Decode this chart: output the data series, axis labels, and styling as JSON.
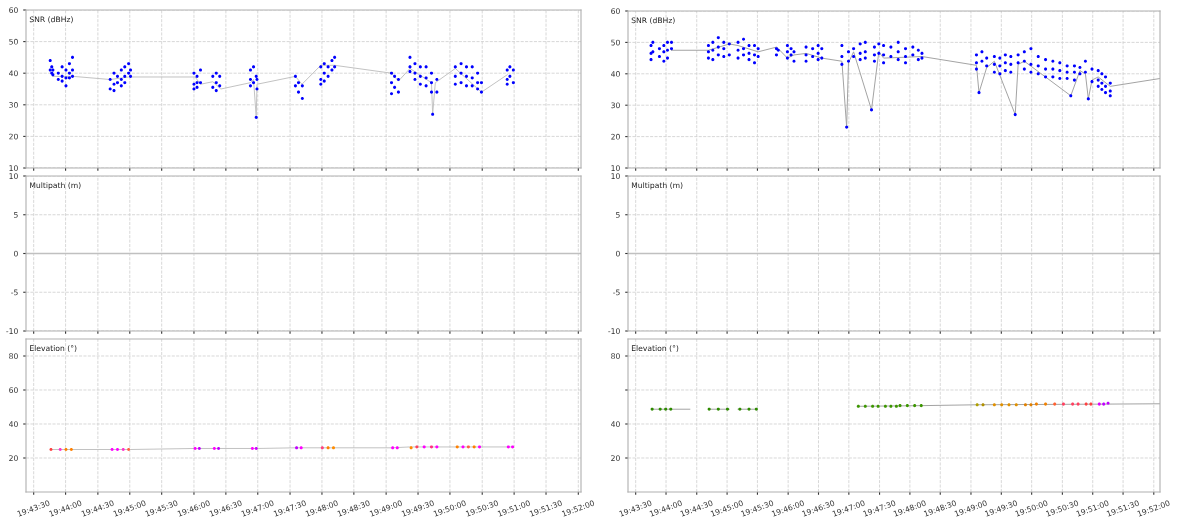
{
  "chart_data": [
    {
      "type": "scatter",
      "ylabel": "SNR (dBHz)",
      "xlim": [
        19.723,
        19.8674
      ],
      "ylim": [
        10,
        60
      ],
      "yticks": [
        10,
        20,
        30,
        40,
        50,
        60
      ],
      "xticks": [
        {
          "value": 19.725,
          "label": null
        },
        {
          "value": 19.7333,
          "label": null
        },
        {
          "value": 19.7417,
          "label": null
        },
        {
          "value": 19.75,
          "label": null
        },
        {
          "value": 19.7583,
          "label": null
        },
        {
          "value": 19.7667,
          "label": null
        },
        {
          "value": 19.775,
          "label": null
        },
        {
          "value": 19.7833,
          "label": null
        },
        {
          "value": 19.7917,
          "label": null
        },
        {
          "value": 19.8,
          "label": null
        },
        {
          "value": 19.8083,
          "label": null
        },
        {
          "value": 19.8167,
          "label": null
        },
        {
          "value": 19.825,
          "label": null
        },
        {
          "value": 19.8333,
          "label": null
        },
        {
          "value": 19.8417,
          "label": null
        },
        {
          "value": 19.85,
          "label": null
        },
        {
          "value": 19.8583,
          "label": null
        },
        {
          "value": 19.8667,
          "label": null
        }
      ],
      "tick_labels": "y",
      "grid": true,
      "series": [
        {
          "type": "line",
          "color": "#c0c0c0",
          "x": [
            19.73,
            19.7353,
            19.7449,
            19.7497,
            19.767,
            19.7684,
            19.7716,
            19.7737,
            19.7814,
            19.7822,
            19.7829,
            19.7831,
            19.7931,
            19.7948,
            19.7997,
            19.8033,
            19.8181,
            19.8199,
            19.8229,
            19.8285,
            19.8288,
            19.8295,
            19.8347,
            19.8415,
            19.8482
          ],
          "values": [
            39,
            39,
            38,
            38.8,
            38.8,
            36.5,
            37.3,
            35,
            37,
            38,
            26,
            36.5,
            39,
            36.5,
            42.5,
            42.5,
            40,
            37.5,
            41.5,
            37,
            27,
            37,
            41.5,
            34,
            39.5
          ]
        },
        {
          "color": "#0000ff",
          "x": [
            19.7293,
            19.7293,
            19.7297,
            19.7297,
            19.73,
            19.73,
            19.7314,
            19.7314,
            19.7324,
            19.7324,
            19.7324,
            19.7334,
            19.7334,
            19.7334,
            19.7343,
            19.7343,
            19.7343,
            19.7351,
            19.7351,
            19.7351,
            19.7449,
            19.7449,
            19.7459,
            19.7459,
            19.7459,
            19.7468,
            19.7468,
            19.7478,
            19.7478,
            19.7478,
            19.7487,
            19.7487,
            19.7487,
            19.7497,
            19.7497,
            19.7502,
            19.7502,
            19.7667,
            19.7667,
            19.7667,
            19.7675,
            19.7675,
            19.7675,
            19.7684,
            19.7684,
            19.7716,
            19.7716,
            19.7725,
            19.7725,
            19.7725,
            19.7734,
            19.7734,
            19.7814,
            19.7814,
            19.7814,
            19.7822,
            19.7822,
            19.7829,
            19.7829,
            19.7831,
            19.7831,
            19.7931,
            19.7931,
            19.7939,
            19.7939,
            19.7949,
            19.7949,
            19.7997,
            19.7997,
            19.7997,
            19.8006,
            19.8006,
            19.8006,
            19.8016,
            19.8016,
            19.8026,
            19.8026,
            19.8033,
            19.8033,
            19.8181,
            19.8181,
            19.8181,
            19.8189,
            19.8189,
            19.8199,
            19.8199,
            19.8229,
            19.8229,
            19.8229,
            19.8242,
            19.8242,
            19.8242,
            19.8256,
            19.8256,
            19.8256,
            19.8271,
            19.8271,
            19.8271,
            19.8285,
            19.8285,
            19.8285,
            19.8288,
            19.8299,
            19.8299,
            19.8347,
            19.8347,
            19.8347,
            19.8362,
            19.8362,
            19.8362,
            19.8376,
            19.8376,
            19.8376,
            19.8391,
            19.8391,
            19.8391,
            19.8405,
            19.8405,
            19.8405,
            19.8415,
            19.8415,
            19.8482,
            19.8482,
            19.8482,
            19.8489,
            19.8489,
            19.8498,
            19.8498
          ],
          "values": [
            44,
            41,
            42,
            40,
            41,
            39.5,
            40,
            38,
            42,
            39,
            37.5,
            41,
            38.5,
            36,
            43,
            40,
            38.5,
            45,
            41,
            39,
            38,
            35,
            40,
            36.5,
            34.5,
            39,
            37,
            41,
            38,
            36,
            42,
            39,
            37,
            43,
            40,
            41,
            39,
            40,
            36.5,
            35,
            39,
            37,
            35.5,
            41,
            37,
            39,
            35.5,
            40,
            37,
            34.5,
            39,
            36,
            41,
            38,
            36,
            42,
            37,
            39,
            26,
            38,
            35,
            39,
            36,
            37,
            34,
            36,
            32,
            42,
            38,
            36.5,
            43,
            40,
            37.5,
            42,
            39,
            44,
            41,
            45,
            42,
            40,
            37,
            33.5,
            39,
            35.5,
            38,
            34,
            45,
            42,
            40.5,
            43,
            40,
            38,
            42,
            39,
            36.5,
            42,
            38.5,
            36,
            40,
            37,
            34,
            27,
            38,
            34,
            42,
            39,
            36.5,
            43,
            40,
            37,
            42,
            39,
            36,
            42,
            38.5,
            36,
            40,
            37,
            35,
            37,
            34,
            41,
            38,
            36.5,
            42,
            39,
            41,
            37
          ]
        }
      ]
    },
    {
      "type": "scatter",
      "ylabel": "Multipath (m)",
      "xlim": [
        19.723,
        19.8674
      ],
      "ylim": [
        -10,
        10
      ],
      "yticks": [
        -10,
        -5,
        0,
        5,
        10
      ],
      "xticks": [
        {
          "value": 19.725,
          "label": null
        },
        {
          "value": 19.7333,
          "label": null
        },
        {
          "value": 19.7417,
          "label": null
        },
        {
          "value": 19.75,
          "label": null
        },
        {
          "value": 19.7583,
          "label": null
        },
        {
          "value": 19.7667,
          "label": null
        },
        {
          "value": 19.775,
          "label": null
        },
        {
          "value": 19.7833,
          "label": null
        },
        {
          "value": 19.7917,
          "label": null
        },
        {
          "value": 19.8,
          "label": null
        },
        {
          "value": 19.8083,
          "label": null
        },
        {
          "value": 19.8167,
          "label": null
        },
        {
          "value": 19.825,
          "label": null
        },
        {
          "value": 19.8333,
          "label": null
        },
        {
          "value": 19.8417,
          "label": null
        },
        {
          "value": 19.85,
          "label": null
        },
        {
          "value": 19.8583,
          "label": null
        },
        {
          "value": 19.8667,
          "label": null
        }
      ],
      "tick_labels": "y",
      "grid": true,
      "ref_lines": [
        {
          "axis": "y",
          "value": 0,
          "color": "#c0c0c0",
          "line_style": "solid"
        }
      ]
    },
    {
      "type": "scatter",
      "ylabel": "Elevation (°)",
      "xlim": [
        19.723,
        19.8674
      ],
      "ylim": [
        0,
        90
      ],
      "yticks": [
        20,
        40,
        60,
        80
      ],
      "xticks": [
        {
          "value": 19.725,
          "label": "19:43:30"
        },
        {
          "value": 19.7333,
          "label": "19:44:00"
        },
        {
          "value": 19.7417,
          "label": "19:44:30"
        },
        {
          "value": 19.75,
          "label": "19:45:00"
        },
        {
          "value": 19.7583,
          "label": "19:45:30"
        },
        {
          "value": 19.7667,
          "label": "19:46:00"
        },
        {
          "value": 19.775,
          "label": "19:46:30"
        },
        {
          "value": 19.7833,
          "label": "19:47:00"
        },
        {
          "value": 19.7917,
          "label": "19:47:30"
        },
        {
          "value": 19.8,
          "label": "19:48:00"
        },
        {
          "value": 19.8083,
          "label": "19:48:30"
        },
        {
          "value": 19.8167,
          "label": "19:49:00"
        },
        {
          "value": 19.825,
          "label": "19:49:30"
        },
        {
          "value": 19.8333,
          "label": "19:50:00"
        },
        {
          "value": 19.8417,
          "label": "19:50:30"
        },
        {
          "value": 19.85,
          "label": "19:51:00"
        },
        {
          "value": 19.8583,
          "label": "19:51:30"
        },
        {
          "value": 19.8667,
          "label": "19:52:00"
        }
      ],
      "grid": true,
      "series": [
        {
          "type": "line",
          "color": "#c0c0c0",
          "x": [
            19.7295,
            19.7502,
            19.7667,
            19.7834,
            19.7931,
            19.8181,
            19.8229,
            19.8498
          ],
          "values": [
            25,
            25,
            25.6,
            25.6,
            26,
            26,
            26.5,
            26.5
          ]
        },
        {
          "x": [
            19.7295,
            19.7319,
            19.7334,
            19.7348,
            19.7454,
            19.7468,
            19.7483,
            19.7497,
            19.767,
            19.7681,
            19.772,
            19.7731,
            19.7819,
            19.7829,
            19.7934,
            19.7946,
            19.8001,
            19.8016,
            19.803,
            19.8184,
            19.8196,
            19.8232,
            19.8247,
            19.8266,
            19.8285,
            19.8299,
            19.8352,
            19.8367,
            19.8381,
            19.8396,
            19.841,
            19.8485,
            19.8496
          ],
          "values": [
            25,
            25,
            25,
            25,
            25,
            25,
            25,
            25,
            25.6,
            25.6,
            25.6,
            25.6,
            25.6,
            25.6,
            26,
            26,
            26,
            26,
            26,
            26,
            26,
            26,
            26.5,
            26.5,
            26.5,
            26.5,
            26.5,
            26.5,
            26.5,
            26.5,
            26.5,
            26.5,
            26.5
          ],
          "colors": [
            "#ff4040",
            "#ff33cc",
            "#ff8000",
            "#ff8000",
            "#ff00ff",
            "#ff00ff",
            "#ff33cc",
            "#ff6040",
            "#ff00ff",
            "#c000ff",
            "#ff00ff",
            "#c000ff",
            "#ff00ff",
            "#cc00ff",
            "#c000ff",
            "#ff00ff",
            "#ff4080",
            "#ff8000",
            "#ff8c00",
            "#ff00ff",
            "#ff00ff",
            "#ff8c00",
            "#ff4060",
            "#ff00ff",
            "#ff3080",
            "#ff00ff",
            "#ff8000",
            "#ff00ff",
            "#ff6040",
            "#ff8000",
            "#ff00ff",
            "#ff00ff",
            "#ff00ff"
          ]
        }
      ]
    },
    {
      "type": "scatter",
      "ylabel": "SNR (dBHz)",
      "xlim": [
        19.7229,
        19.8684
      ],
      "ylim": [
        10,
        60
      ],
      "yticks": [
        10,
        20,
        30,
        40,
        50,
        60
      ],
      "xticks": [
        {
          "value": 19.725,
          "label": null
        },
        {
          "value": 19.7333,
          "label": null
        },
        {
          "value": 19.7417,
          "label": null
        },
        {
          "value": 19.75,
          "label": null
        },
        {
          "value": 19.7583,
          "label": null
        },
        {
          "value": 19.7667,
          "label": null
        },
        {
          "value": 19.775,
          "label": null
        },
        {
          "value": 19.7833,
          "label": null
        },
        {
          "value": 19.7917,
          "label": null
        },
        {
          "value": 19.8,
          "label": null
        },
        {
          "value": 19.8083,
          "label": null
        },
        {
          "value": 19.8167,
          "label": null
        },
        {
          "value": 19.825,
          "label": null
        },
        {
          "value": 19.8333,
          "label": null
        },
        {
          "value": 19.8417,
          "label": null
        },
        {
          "value": 19.85,
          "label": null
        },
        {
          "value": 19.8583,
          "label": null
        },
        {
          "value": 19.8667,
          "label": null
        }
      ],
      "tick_labels": "y",
      "grid": true,
      "series": [
        {
          "type": "line",
          "color": "#a0a0a0",
          "x": [
            19.7348,
            19.7449,
            19.7506,
            19.753,
            19.7585,
            19.7635,
            19.764,
            19.7665,
            19.7683,
            19.7716,
            19.7759,
            19.7814,
            19.7827,
            19.7832,
            19.7846,
            19.7895,
            19.7915,
            19.7928,
            19.8033,
            19.8182,
            19.8189,
            19.821,
            19.8231,
            19.8288,
            19.8296,
            19.8313,
            19.844,
            19.8465,
            19.848,
            19.8488,
            19.8498,
            19.8515,
            19.8548,
            19.8684
          ],
          "values": [
            47.5,
            47.5,
            49.5,
            49,
            47,
            48.5,
            48,
            45,
            46,
            46.5,
            45,
            44,
            23,
            43.5,
            47,
            28.5,
            47,
            45,
            45.5,
            42.7,
            34,
            42,
            44,
            27,
            43,
            44,
            33,
            41,
            40,
            32,
            38,
            39,
            36,
            38.5
          ]
        },
        {
          "color": "#0000ff",
          "x": [
            19.7292,
            19.7292,
            19.7292,
            19.7297,
            19.7297,
            19.7315,
            19.7315,
            19.7327,
            19.7327,
            19.7327,
            19.7337,
            19.7337,
            19.7337,
            19.7348,
            19.7348,
            19.7449,
            19.7449,
            19.7449,
            19.7461,
            19.7461,
            19.7461,
            19.7476,
            19.7476,
            19.7476,
            19.7491,
            19.7491,
            19.7491,
            19.7506,
            19.7506,
            19.753,
            19.753,
            19.753,
            19.7545,
            19.7545,
            19.7545,
            19.756,
            19.756,
            19.756,
            19.7575,
            19.7575,
            19.7575,
            19.7585,
            19.7585,
            19.7635,
            19.7635,
            19.764,
            19.7665,
            19.7665,
            19.7665,
            19.7675,
            19.7675,
            19.7683,
            19.7683,
            19.7716,
            19.7716,
            19.7716,
            19.7734,
            19.7734,
            19.7749,
            19.7749,
            19.7749,
            19.7759,
            19.7759,
            19.7814,
            19.7814,
            19.7814,
            19.7827,
            19.7832,
            19.7832,
            19.7846,
            19.7846,
            19.7864,
            19.7864,
            19.7864,
            19.7878,
            19.7878,
            19.7878,
            19.7895,
            19.7903,
            19.7903,
            19.7903,
            19.7915,
            19.7915,
            19.7928,
            19.7928,
            19.7928,
            19.7948,
            19.7948,
            19.7968,
            19.7968,
            19.7968,
            19.7988,
            19.7988,
            19.7988,
            19.8008,
            19.8008,
            19.8023,
            19.8023,
            19.8033,
            19.8033,
            19.8182,
            19.8182,
            19.8182,
            19.8189,
            19.8197,
            19.8197,
            19.821,
            19.821,
            19.8231,
            19.8231,
            19.8231,
            19.8246,
            19.8246,
            19.8246,
            19.8261,
            19.8261,
            19.8261,
            19.8276,
            19.8276,
            19.8276,
            19.8288,
            19.8296,
            19.8296,
            19.8313,
            19.8313,
            19.8313,
            19.8331,
            19.8331,
            19.8331,
            19.8351,
            19.8351,
            19.8351,
            19.8371,
            19.8371,
            19.8371,
            19.8391,
            19.8391,
            19.8391,
            19.841,
            19.841,
            19.841,
            19.843,
            19.843,
            19.843,
            19.844,
            19.845,
            19.845,
            19.845,
            19.8465,
            19.8465,
            19.848,
            19.848,
            19.8488,
            19.8498,
            19.8498,
            19.8515,
            19.8515,
            19.8515,
            19.8525,
            19.8525,
            19.8525,
            19.8535,
            19.8535,
            19.8535,
            19.8548,
            19.8548,
            19.8548
          ],
          "values": [
            49,
            46.5,
            44.5,
            50,
            47,
            48,
            45.5,
            49,
            47,
            44,
            50,
            47.5,
            45,
            50,
            48,
            49,
            47,
            45,
            50,
            47.5,
            44.5,
            51.5,
            48.5,
            46,
            50,
            48,
            45.5,
            49.5,
            46,
            50,
            47.5,
            45,
            51,
            48,
            46,
            49,
            46.5,
            44.5,
            49,
            46,
            43.5,
            48,
            45.5,
            48,
            46,
            47.5,
            49,
            47,
            45,
            48,
            46,
            47,
            44,
            48.5,
            46,
            44,
            48,
            45.5,
            49,
            46.5,
            44.5,
            48,
            45,
            49,
            45.5,
            43,
            23,
            47,
            44,
            48,
            45.5,
            49.5,
            46.5,
            44.5,
            50,
            47,
            45,
            28.5,
            48.5,
            46,
            44,
            49.5,
            46.5,
            49,
            46,
            43.5,
            48.5,
            45.5,
            50,
            47,
            44.5,
            48,
            45.5,
            43.5,
            48.5,
            46,
            47.5,
            44.5,
            46.5,
            45,
            46,
            43.5,
            41.5,
            34,
            47,
            44,
            45,
            42.5,
            45.5,
            43,
            40.5,
            45,
            42.5,
            40,
            46,
            43.5,
            41,
            45.5,
            43,
            40.5,
            27,
            46,
            43.5,
            47,
            44,
            41.5,
            48,
            43,
            40.5,
            45.5,
            42.5,
            40,
            44.5,
            41.5,
            39,
            44,
            41.5,
            39,
            43.5,
            41,
            38.5,
            42.5,
            40.5,
            38.5,
            33,
            42.5,
            40.5,
            38,
            42,
            40,
            44,
            40.5,
            32,
            41.5,
            37.5,
            41,
            38,
            36,
            40,
            37,
            35,
            39,
            36,
            34,
            37,
            34.5,
            33
          ]
        }
      ]
    },
    {
      "type": "scatter",
      "ylabel": "Multipath (m)",
      "xlim": [
        19.7229,
        19.8684
      ],
      "ylim": [
        -10,
        10
      ],
      "yticks": [
        -10,
        -5,
        0,
        5,
        10
      ],
      "xticks": [
        {
          "value": 19.725,
          "label": null
        },
        {
          "value": 19.7333,
          "label": null
        },
        {
          "value": 19.7417,
          "label": null
        },
        {
          "value": 19.75,
          "label": null
        },
        {
          "value": 19.7583,
          "label": null
        },
        {
          "value": 19.7667,
          "label": null
        },
        {
          "value": 19.775,
          "label": null
        },
        {
          "value": 19.7833,
          "label": null
        },
        {
          "value": 19.7917,
          "label": null
        },
        {
          "value": 19.8,
          "label": null
        },
        {
          "value": 19.8083,
          "label": null
        },
        {
          "value": 19.8167,
          "label": null
        },
        {
          "value": 19.825,
          "label": null
        },
        {
          "value": 19.8333,
          "label": null
        },
        {
          "value": 19.8417,
          "label": null
        },
        {
          "value": 19.85,
          "label": null
        },
        {
          "value": 19.8583,
          "label": null
        },
        {
          "value": 19.8667,
          "label": null
        }
      ],
      "tick_labels": "y",
      "grid": true,
      "ref_lines": [
        {
          "axis": "y",
          "value": 0,
          "color": "#c0c0c0",
          "line_style": "solid"
        }
      ]
    },
    {
      "type": "scatter",
      "ylabel": "Elevation (°)",
      "xlim": [
        19.7229,
        19.8684
      ],
      "ylim": [
        0,
        90
      ],
      "yticks": [
        20,
        40,
        {
          "value": 60,
          "label": null
        },
        80
      ],
      "xticks": [
        {
          "value": 19.725,
          "label": "19:43:30"
        },
        {
          "value": 19.7333,
          "label": "19:44:00"
        },
        {
          "value": 19.7417,
          "label": "19:44:30"
        },
        {
          "value": 19.75,
          "label": "19:45:00"
        },
        {
          "value": 19.7583,
          "label": "19:45:30"
        },
        {
          "value": 19.7667,
          "label": "19:46:00"
        },
        {
          "value": 19.775,
          "label": "19:46:30"
        },
        {
          "value": 19.7833,
          "label": "19:47:00"
        },
        {
          "value": 19.7917,
          "label": "19:47:30"
        },
        {
          "value": 19.8,
          "label": "19:48:00"
        },
        {
          "value": 19.8083,
          "label": "19:48:30"
        },
        {
          "value": 19.8167,
          "label": "19:49:00"
        },
        {
          "value": 19.825,
          "label": "19:49:30"
        },
        {
          "value": 19.8333,
          "label": "19:50:00"
        },
        {
          "value": 19.8417,
          "label": "19:50:30"
        },
        {
          "value": 19.85,
          "label": "19:51:00"
        },
        {
          "value": 19.8583,
          "label": "19:51:30"
        },
        {
          "value": 19.8667,
          "label": "19:52:00"
        }
      ],
      "grid": true,
      "series": [
        {
          "type": "line",
          "color": "#a0a0a0",
          "x": [
            19.7295,
            19.7398,
            19.743,
            19.7449,
            19.7506,
            19.752,
            19.753,
            19.758,
            19.77,
            19.7856,
            19.8033,
            19.8182,
            19.853,
            19.8684
          ],
          "values": [
            48.7,
            48.7,
            null,
            48.7,
            48.7,
            null,
            48.7,
            48.7,
            null,
            50.4,
            50.8,
            51.3,
            51.7,
            51.9
          ]
        },
        {
          "x": [
            19.7295,
            19.7317,
            19.7332,
            19.7346,
            19.7451,
            19.7476,
            19.7501,
            19.7535,
            19.756,
            19.758,
            19.7859,
            19.7878,
            19.7898,
            19.7913,
            19.7933,
            19.7948,
            19.7963,
            19.7973,
            19.7993,
            19.8013,
            19.8031,
            19.8184,
            19.82,
            19.8231,
            19.8251,
            19.8271,
            19.8291,
            19.8316,
            19.8331,
            19.8346,
            19.8371,
            19.8396,
            19.842,
            19.8445,
            19.846,
            19.8482,
            19.8495,
            19.8518,
            19.853,
            19.8542
          ],
          "values": [
            48.7,
            48.7,
            48.7,
            48.7,
            48.7,
            48.7,
            48.7,
            48.7,
            48.7,
            48.7,
            50.4,
            50.4,
            50.4,
            50.4,
            50.4,
            50.4,
            50.4,
            50.8,
            50.8,
            50.8,
            50.8,
            51.3,
            51.3,
            51.3,
            51.3,
            51.3,
            51.3,
            51.3,
            51.3,
            51.7,
            51.7,
            51.7,
            51.7,
            51.7,
            51.7,
            51.7,
            51.7,
            51.7,
            51.7,
            52.2
          ],
          "colors": [
            "#2e8b00",
            "#2e8b00",
            "#2e8b00",
            "#2e8b00",
            "#2e8b00",
            "#2e8b00",
            "#2e8b00",
            "#2e8b00",
            "#2e8b00",
            "#2e8b00",
            "#3c9600",
            "#3c9600",
            "#3c9600",
            "#3c9600",
            "#3c9600",
            "#3c9600",
            "#3c9600",
            "#3c9600",
            "#3c9600",
            "#3c9600",
            "#3c9600",
            "#b0a000",
            "#b09000",
            "#e09000",
            "#e09000",
            "#e09000",
            "#e09000",
            "#e08000",
            "#e08000",
            "#f08000",
            "#f08000",
            "#ff6030",
            "#ff4060",
            "#ff4060",
            "#ff4060",
            "#ff4040",
            "#ff4040",
            "#e000ff",
            "#c000ff",
            "#c000ff"
          ]
        }
      ]
    }
  ]
}
